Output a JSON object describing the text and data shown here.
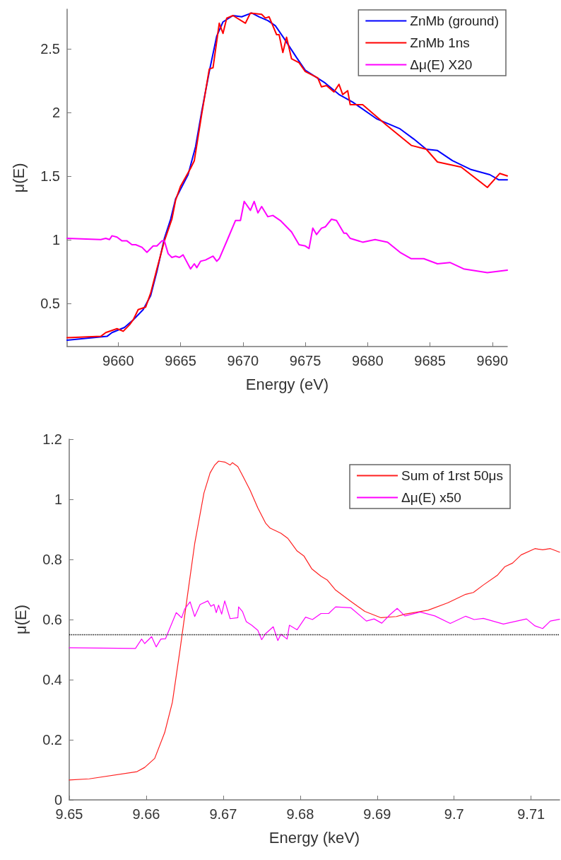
{
  "chart_data": [
    {
      "type": "line",
      "xlabel": "Energy (eV)",
      "ylabel": "μ(E)",
      "xlim": [
        9655.9,
        9691.2
      ],
      "xticks": [
        9660,
        9665,
        9670,
        9675,
        9680,
        9685,
        9690
      ],
      "ylim": [
        0.16,
        2.81
      ],
      "yticks": [
        0.5,
        1,
        1.5,
        2,
        2.5
      ],
      "grid": false,
      "legend": "top right",
      "marker": "none",
      "line_style": "solid",
      "series": [
        {
          "name": "ZnMb (ground)",
          "color": "#0000ff",
          "x": [
            9655.9,
            9659.1,
            9659.5,
            9660.5,
            9661.2,
            9662.0,
            9662.6,
            9663.1,
            9663.7,
            9664.2,
            9664.6,
            9665.6,
            9666.2,
            9666.7,
            9667.3,
            9667.9,
            9668.4,
            9669.2,
            9669.9,
            9670.7,
            9671.3,
            9672.0,
            9672.6,
            9673.3,
            9674.3,
            9675.0,
            9676.6,
            9677.7,
            9678.8,
            9680.7,
            9682.6,
            9683.7,
            9684.7,
            9685.6,
            9686.8,
            9688.3,
            9689.8,
            9690.5,
            9691.2
          ],
          "values": [
            0.21,
            0.24,
            0.27,
            0.31,
            0.37,
            0.45,
            0.56,
            0.75,
            1.01,
            1.16,
            1.32,
            1.51,
            1.73,
            2.01,
            2.32,
            2.6,
            2.71,
            2.76,
            2.75,
            2.78,
            2.75,
            2.72,
            2.68,
            2.58,
            2.43,
            2.33,
            2.23,
            2.14,
            2.08,
            1.95,
            1.87,
            1.79,
            1.71,
            1.7,
            1.62,
            1.55,
            1.51,
            1.47,
            1.47
          ]
        },
        {
          "name": "ZnMb 1ns",
          "color": "#ff0000",
          "x": [
            9655.9,
            9658.6,
            9659.0,
            9659.9,
            9660.4,
            9660.9,
            9661.2,
            9661.6,
            9662.2,
            9662.6,
            9663.1,
            9663.7,
            9664.3,
            9664.6,
            9665.0,
            9665.8,
            9666.1,
            9666.7,
            9667.3,
            9667.6,
            9668.1,
            9668.4,
            9668.7,
            9669.2,
            9670.2,
            9670.6,
            9671.5,
            9671.8,
            9672.1,
            9672.7,
            9672.9,
            9673.2,
            9673.5,
            9673.9,
            9674.5,
            9675.0,
            9676.0,
            9676.3,
            9676.7,
            9677.3,
            9677.7,
            9678.0,
            9678.4,
            9678.6,
            9679.6,
            9681.5,
            9683.5,
            9684.7,
            9685.6,
            9687.5,
            9689.6,
            9690.6,
            9691.2
          ],
          "values": [
            0.23,
            0.24,
            0.27,
            0.3,
            0.28,
            0.33,
            0.37,
            0.45,
            0.47,
            0.58,
            0.77,
            0.99,
            1.16,
            1.31,
            1.42,
            1.56,
            1.62,
            1.99,
            2.34,
            2.35,
            2.7,
            2.62,
            2.74,
            2.76,
            2.7,
            2.78,
            2.77,
            2.74,
            2.75,
            2.61,
            2.61,
            2.47,
            2.59,
            2.42,
            2.39,
            2.32,
            2.27,
            2.2,
            2.21,
            2.16,
            2.22,
            2.14,
            2.17,
            2.06,
            2.06,
            1.9,
            1.74,
            1.71,
            1.61,
            1.57,
            1.41,
            1.52,
            1.5
          ]
        },
        {
          "name": "Δμ(E) X20",
          "color": "#ff00ff",
          "x": [
            9655.9,
            9658.6,
            9659.0,
            9659.3,
            9659.5,
            9659.9,
            9660.3,
            9660.7,
            9661.1,
            9661.4,
            9661.9,
            9662.3,
            9662.8,
            9663.1,
            9663.5,
            9663.7,
            9664.0,
            9664.3,
            9664.6,
            9664.9,
            9665.2,
            9665.8,
            9666.1,
            9666.3,
            9666.6,
            9667.0,
            9667.6,
            9667.9,
            9668.1,
            9668.8,
            9669.4,
            9669.8,
            9670.1,
            9670.6,
            9670.9,
            9671.2,
            9671.5,
            9672.0,
            9672.4,
            9673.0,
            9673.9,
            9674.5,
            9675.0,
            9675.3,
            9675.6,
            9675.9,
            9676.3,
            9676.6,
            9677.1,
            9677.5,
            9678.1,
            9678.3,
            9678.6,
            9679.6,
            9680.6,
            9681.6,
            9682.6,
            9683.5,
            9684.5,
            9685.6,
            9686.6,
            9687.7,
            9689.6,
            9691.2
          ],
          "values": [
            1.01,
            1.0,
            1.01,
            1.0,
            1.03,
            1.02,
            0.99,
            0.99,
            0.96,
            0.96,
            0.94,
            0.9,
            0.95,
            0.95,
            0.99,
            0.99,
            0.89,
            0.86,
            0.87,
            0.86,
            0.88,
            0.77,
            0.81,
            0.78,
            0.83,
            0.84,
            0.87,
            0.83,
            0.85,
            1.01,
            1.15,
            1.15,
            1.3,
            1.23,
            1.3,
            1.21,
            1.26,
            1.18,
            1.19,
            1.15,
            1.06,
            0.96,
            0.95,
            0.93,
            1.09,
            1.04,
            1.09,
            1.1,
            1.16,
            1.15,
            1.05,
            1.05,
            1.01,
            0.98,
            1.0,
            0.98,
            0.9,
            0.85,
            0.85,
            0.81,
            0.82,
            0.77,
            0.74,
            0.76
          ]
        }
      ]
    },
    {
      "type": "line",
      "xlabel": "Energy (keV)",
      "ylabel": "μ(E)",
      "xlim": [
        9.65,
        9.7137
      ],
      "xticks": [
        9.65,
        9.66,
        9.67,
        9.68,
        9.69,
        9.7,
        9.71
      ],
      "ylim": [
        0,
        1.2
      ],
      "yticks": [
        0,
        0.2,
        0.4,
        0.6,
        0.8,
        1,
        1.2
      ],
      "grid": false,
      "legend": "top right",
      "marker": "none",
      "line_style": "solid",
      "ref_lines": [
        {
          "axis": "y",
          "value": 0.55,
          "color": "#000000",
          "line_style": "dotted"
        }
      ],
      "series": [
        {
          "name": "Sum of 1rst 50μs",
          "color": "#ff2020",
          "x": [
            9.65,
            9.6526,
            9.6588,
            9.6598,
            9.6611,
            9.6624,
            9.6634,
            9.6644,
            9.6653,
            9.6663,
            9.6675,
            9.6683,
            9.6689,
            9.6694,
            9.6702,
            9.6709,
            9.6712,
            9.6719,
            9.6725,
            9.6735,
            9.6745,
            9.6755,
            9.6761,
            9.6775,
            9.6784,
            9.6796,
            9.6805,
            9.6815,
            9.6827,
            9.6835,
            9.6846,
            9.6866,
            9.6884,
            9.6905,
            9.6925,
            9.6936,
            9.6966,
            9.6992,
            9.7015,
            9.7025,
            9.7038,
            9.7056,
            9.7066,
            9.7076,
            9.7087,
            9.7105,
            9.7115,
            9.7125,
            9.7137
          ],
          "values": [
            0.066,
            0.07,
            0.094,
            0.108,
            0.138,
            0.224,
            0.325,
            0.501,
            0.669,
            0.853,
            1.021,
            1.088,
            1.114,
            1.127,
            1.124,
            1.114,
            1.122,
            1.109,
            1.08,
            1.03,
            0.971,
            0.921,
            0.904,
            0.887,
            0.87,
            0.828,
            0.811,
            0.769,
            0.744,
            0.732,
            0.698,
            0.66,
            0.627,
            0.606,
            0.61,
            0.618,
            0.631,
            0.656,
            0.684,
            0.69,
            0.715,
            0.747,
            0.776,
            0.788,
            0.815,
            0.836,
            0.832,
            0.836,
            0.824
          ]
        },
        {
          "name": "Δμ(E) x50",
          "color": "#ff00ff",
          "x": [
            9.65,
            9.6586,
            9.6594,
            9.6598,
            9.6607,
            9.6613,
            9.6619,
            9.6625,
            9.6639,
            9.6646,
            9.665,
            9.6657,
            9.6663,
            9.667,
            9.668,
            9.6684,
            9.6688,
            9.6691,
            9.6694,
            9.6698,
            9.6702,
            9.6709,
            9.6719,
            9.672,
            9.6725,
            9.673,
            9.6737,
            9.6745,
            9.675,
            9.6755,
            9.6765,
            9.6771,
            9.6775,
            9.6783,
            9.6786,
            9.6796,
            9.6807,
            9.6816,
            9.6827,
            9.6837,
            9.6846,
            9.6866,
            9.6886,
            9.6896,
            9.6906,
            9.6917,
            9.6926,
            9.6936,
            9.6956,
            9.6975,
            9.6995,
            9.7015,
            9.7026,
            9.7038,
            9.7064,
            9.7094,
            9.7105,
            9.7115,
            9.7125,
            9.7137
          ],
          "values": [
            0.506,
            0.504,
            0.535,
            0.52,
            0.543,
            0.509,
            0.535,
            0.536,
            0.623,
            0.606,
            0.635,
            0.659,
            0.61,
            0.65,
            0.662,
            0.644,
            0.65,
            0.623,
            0.648,
            0.618,
            0.662,
            0.603,
            0.606,
            0.642,
            0.627,
            0.593,
            0.581,
            0.564,
            0.533,
            0.553,
            0.576,
            0.53,
            0.551,
            0.535,
            0.581,
            0.566,
            0.608,
            0.6,
            0.62,
            0.62,
            0.642,
            0.639,
            0.595,
            0.602,
            0.588,
            0.617,
            0.637,
            0.612,
            0.625,
            0.612,
            0.587,
            0.611,
            0.6,
            0.604,
            0.585,
            0.602,
            0.579,
            0.57,
            0.595,
            0.601
          ]
        }
      ]
    }
  ]
}
